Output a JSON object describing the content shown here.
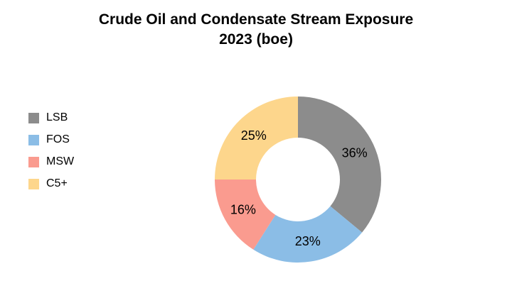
{
  "chart_data": {
    "type": "pie",
    "variant": "donut",
    "title": "Crude Oil and Condensate Stream Exposure",
    "subtitle": "2023 (boe)",
    "categories": [
      "LSB",
      "FOS",
      "MSW",
      "C5+"
    ],
    "values": [
      36,
      23,
      16,
      25
    ],
    "labels": [
      "36%",
      "23%",
      "16%",
      "25%"
    ],
    "colors": [
      "#8c8c8c",
      "#8bbde6",
      "#fa9b8f",
      "#fdd68c"
    ],
    "legend": "left"
  }
}
